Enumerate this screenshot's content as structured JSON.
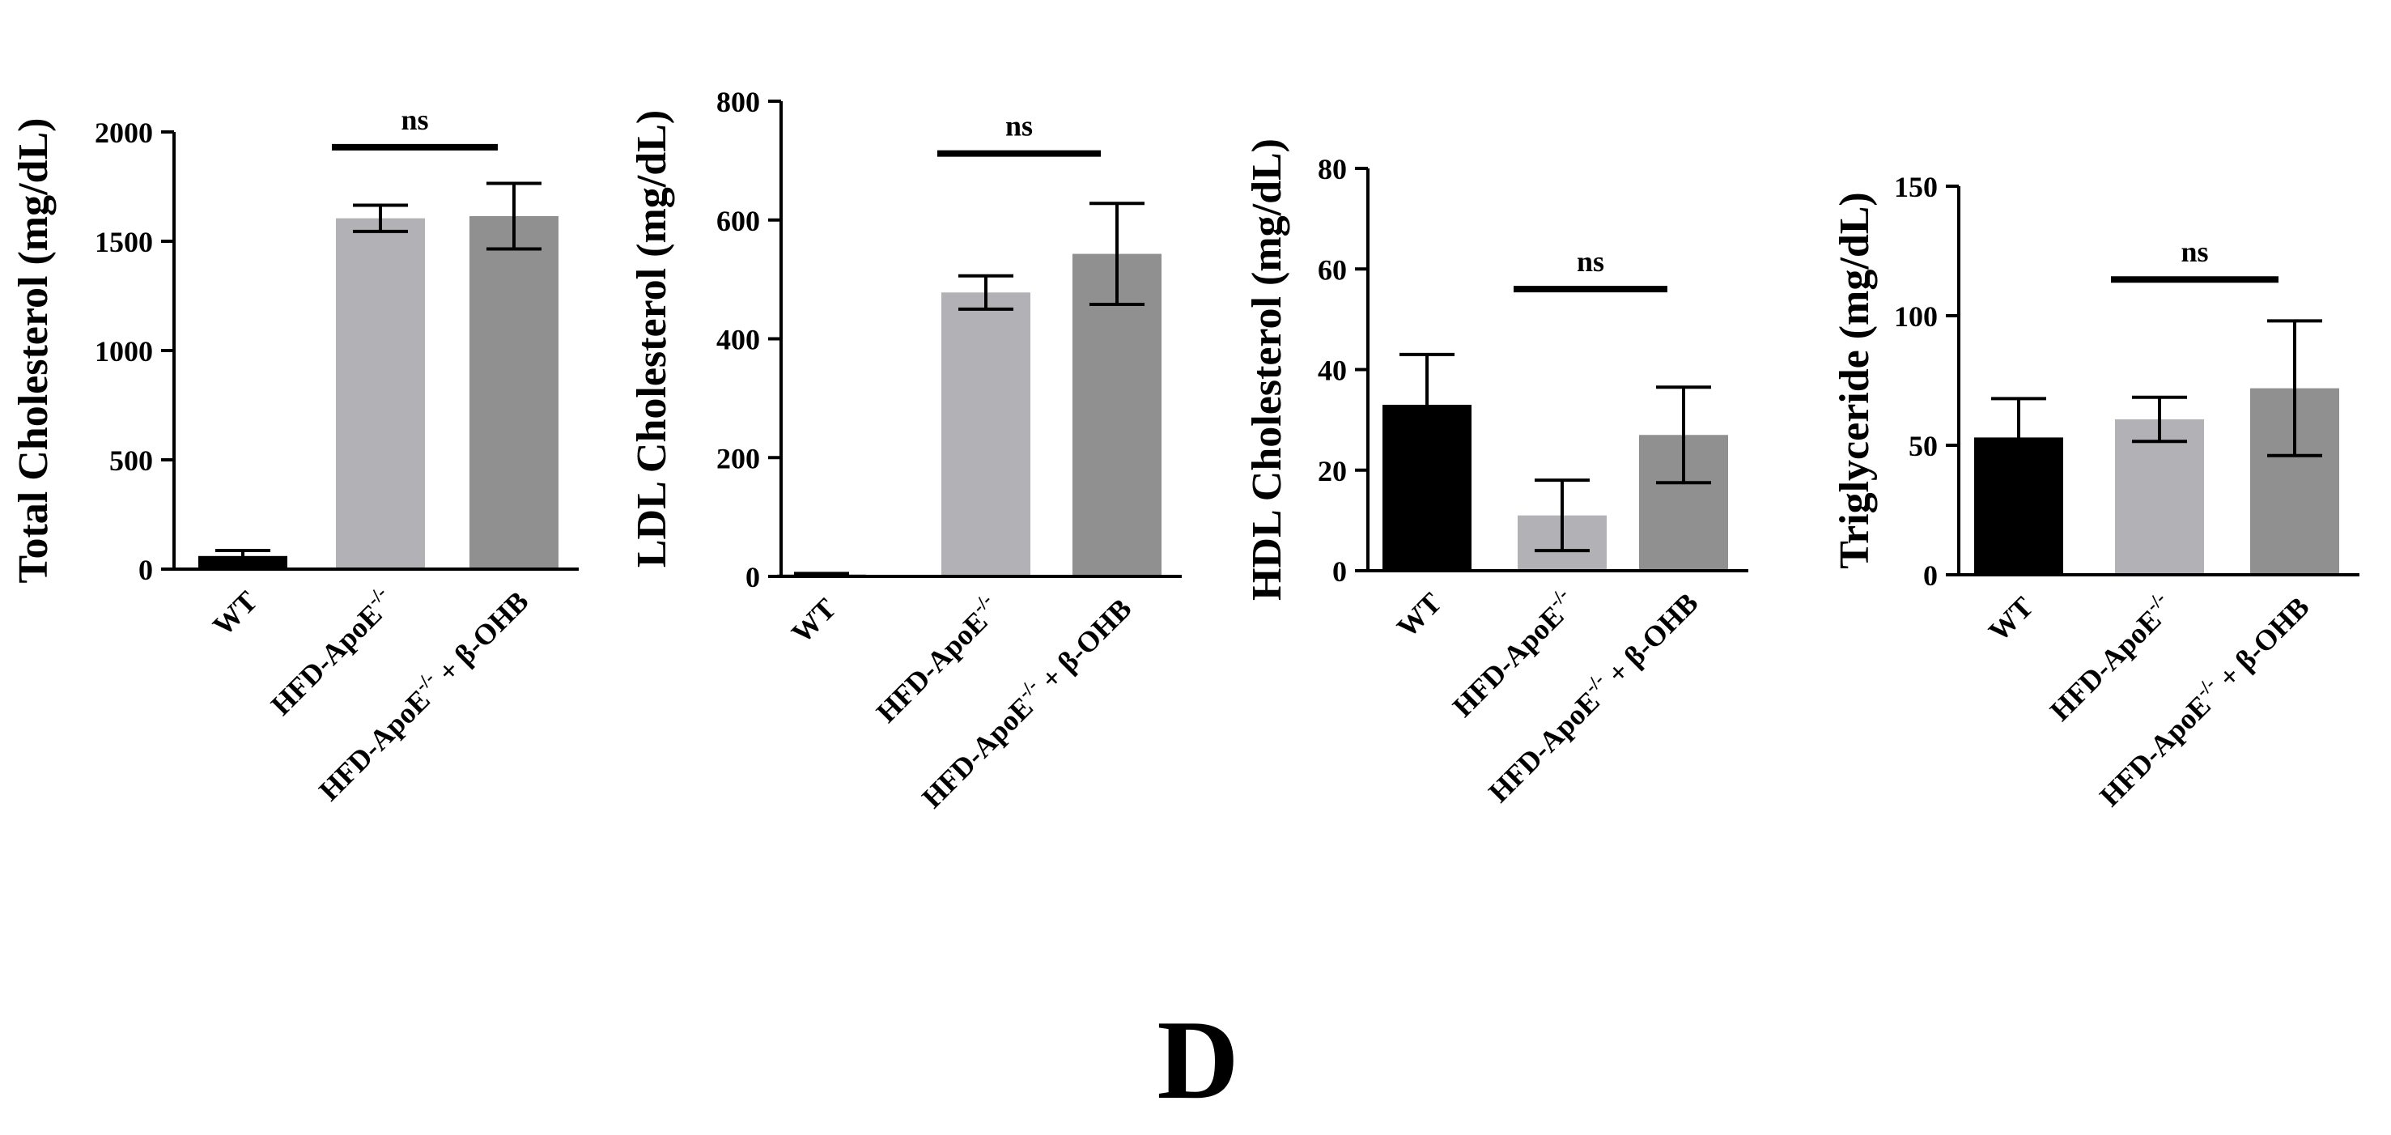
{
  "figure": {
    "panel_label": "D",
    "colors": {
      "WT": "#000000",
      "HFD": "#b2b2b6",
      "HFD_BOHB": "#909090",
      "axis": "#000000"
    }
  },
  "chart_data": [
    {
      "type": "bar",
      "title": "",
      "xlabel": "",
      "ylabel": "Total Cholesterol (mg/dL)",
      "categories": [
        "WT",
        "HFD-ApoE",
        "HFD-ApoE + β-OHB"
      ],
      "values": [
        60,
        1605,
        1615
      ],
      "errors": [
        25,
        60,
        150
      ],
      "ylim": [
        0,
        2000
      ],
      "yticks": [
        "0",
        "500",
        "1000",
        "1500",
        "2000"
      ],
      "significance": {
        "label": "ns",
        "between": [
          1,
          2
        ],
        "level": 1930
      }
    },
    {
      "type": "bar",
      "title": "",
      "xlabel": "",
      "ylabel": "LDL Cholesterol (mg/dL)",
      "categories": [
        "WT",
        "HFD-ApoE",
        "HFD-ApoE + β-OHB"
      ],
      "values": [
        3,
        478,
        543
      ],
      "errors": [
        2,
        28,
        85
      ],
      "ylim": [
        0,
        800
      ],
      "yticks": [
        "0",
        "200",
        "400",
        "600",
        "800"
      ],
      "significance": {
        "label": "ns",
        "between": [
          1,
          2
        ],
        "level": 712
      }
    },
    {
      "type": "bar",
      "title": "",
      "xlabel": "",
      "ylabel": "HDL Cholesterol (mg/dL)",
      "categories": [
        "WT",
        "HFD-ApoE",
        "HFD-ApoE + β-OHB"
      ],
      "values": [
        33,
        11,
        27
      ],
      "errors": [
        10,
        7,
        9.5
      ],
      "ylim": [
        0,
        80
      ],
      "yticks": [
        "0",
        "20",
        "40",
        "60",
        "80"
      ],
      "significance": {
        "label": "ns",
        "between": [
          1,
          2
        ],
        "level": 56
      }
    },
    {
      "type": "bar",
      "title": "",
      "xlabel": "",
      "ylabel": "Triglyceride (mg/dL)",
      "categories": [
        "WT",
        "HFD-ApoE",
        "HFD-ApoE + β-OHB"
      ],
      "values": [
        53,
        60,
        72
      ],
      "errors": [
        15,
        8.5,
        26
      ],
      "ylim": [
        0,
        150
      ],
      "yticks": [
        "0",
        "50",
        "100",
        "150"
      ],
      "significance": {
        "label": "ns",
        "between": [
          1,
          2
        ],
        "level": 114
      }
    }
  ]
}
